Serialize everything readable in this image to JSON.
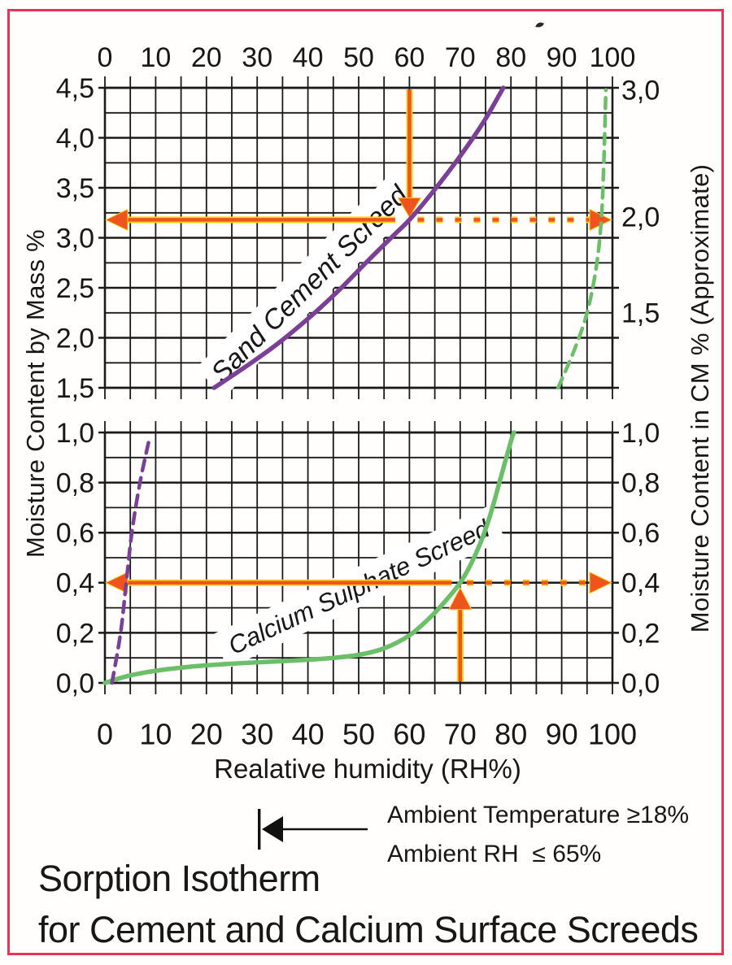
{
  "frame": {
    "border_color": "#ee3156"
  },
  "title": {
    "line1": "Sorption Isotherm",
    "line2": "for Cement and Calcium Surface Screeds"
  },
  "legend": {
    "line1": "Ambient Temperature ≥18%",
    "line2": "Ambient RH  ≤ 65%"
  },
  "axis_titles": {
    "x": "Realative humidity (RH%)",
    "left": "Moisture Content by Mass %",
    "right": "Moisture Content in CM % (Approximate)"
  },
  "curve_labels": {
    "sand": "Sand Cement Screed",
    "calcium": "Calcium Sulphate Screed"
  },
  "colors": {
    "purple": "#7b3f98",
    "green": "#6abf68",
    "orange": "#f0541e",
    "orange_glow": "#ffd21f",
    "grid": "#1a1a1a",
    "text": "#171717"
  },
  "chart_data": {
    "type": "line",
    "title": "Sorption Isotherm for Cement and Calcium Surface Screeds",
    "xlabel": "Realative humidity (RH%)",
    "x_axis": {
      "min": 0,
      "max": 100,
      "minor_step": 5,
      "major_step": 10,
      "tick_labels": [
        "0",
        "10",
        "20",
        "30",
        "40",
        "50",
        "60",
        "70",
        "80",
        "90",
        "100"
      ]
    },
    "panels": [
      {
        "id": "top",
        "left_axis": {
          "label": "Moisture Content by Mass %",
          "min": 1.5,
          "max": 4.5,
          "minor_step": 0.25,
          "major_step": 0.5,
          "tick_labels": [
            {
              "text": "4,5",
              "at": 4.5
            },
            {
              "text": "4,0",
              "at": 4.0
            },
            {
              "text": "3,5",
              "at": 3.5
            },
            {
              "text": "3,0",
              "at": 3.0
            },
            {
              "text": "2,5",
              "at": 2.5
            },
            {
              "text": "2,0",
              "at": 2.0
            },
            {
              "text": "1,5",
              "at": 1.5
            }
          ]
        },
        "right_axis": {
          "label": "Moisture Content in CM % (Approximate)",
          "tick_labels": [
            {
              "text": "3,0",
              "at": 4.48
            },
            {
              "text": "2,0",
              "at": 3.21
            },
            {
              "text": "1,5",
              "at": 2.25
            }
          ]
        },
        "series": [
          {
            "name": "Sand Cement Screed",
            "color": "purple",
            "style": "solid",
            "points": [
              [
                21.5,
                1.5
              ],
              [
                28,
                1.72
              ],
              [
                34,
                1.94
              ],
              [
                40,
                2.19
              ],
              [
                46,
                2.47
              ],
              [
                52,
                2.78
              ],
              [
                57,
                3.03
              ],
              [
                60,
                3.18
              ],
              [
                64,
                3.42
              ],
              [
                68,
                3.68
              ],
              [
                72,
                3.96
              ],
              [
                75,
                4.19
              ],
              [
                78.5,
                4.5
              ]
            ]
          },
          {
            "name": "Calcium Sulphate Screed (continuation, dashed)",
            "color": "green",
            "style": "dashed",
            "points": [
              [
                89.3,
                1.5
              ],
              [
                92.5,
                1.88
              ],
              [
                95,
                2.25
              ],
              [
                96.8,
                2.7
              ],
              [
                97.8,
                3.18
              ],
              [
                98.3,
                3.75
              ],
              [
                98.7,
                4.48
              ]
            ]
          }
        ],
        "annotation": {
          "vertical_arrow_x": 60,
          "vertical_arrow_direction": "down",
          "horizontal_arrow_y": 3.18,
          "solid_until_x": 57.2,
          "dotted_from_x": 61.6
        }
      },
      {
        "id": "bottom",
        "left_axis": {
          "label": "Moisture Content by Mass %",
          "min": 0.0,
          "max": 1.0,
          "minor_step": 0.1,
          "major_step": 0.2,
          "tick_labels": [
            {
              "text": "1,0",
              "at": 1.0
            },
            {
              "text": "0,8",
              "at": 0.8
            },
            {
              "text": "0,6",
              "at": 0.6
            },
            {
              "text": "0,4",
              "at": 0.4
            },
            {
              "text": "0,2",
              "at": 0.2
            },
            {
              "text": "0,0",
              "at": 0.0
            }
          ]
        },
        "right_axis": {
          "label": "Moisture Content in CM % (Approximate)",
          "tick_labels": [
            {
              "text": "1,0",
              "at": 1.0
            },
            {
              "text": "0,8",
              "at": 0.8
            },
            {
              "text": "0,6",
              "at": 0.6
            },
            {
              "text": "0,4",
              "at": 0.4
            },
            {
              "text": "0,2",
              "at": 0.2
            },
            {
              "text": "0,0",
              "at": 0.0
            }
          ]
        },
        "series": [
          {
            "name": "Calcium Sulphate Screed",
            "color": "green",
            "style": "solid",
            "points": [
              [
                0,
                0
              ],
              [
                4,
                0.025
              ],
              [
                8,
                0.042
              ],
              [
                12,
                0.054
              ],
              [
                16,
                0.063
              ],
              [
                20,
                0.07
              ],
              [
                26,
                0.078
              ],
              [
                32,
                0.084
              ],
              [
                38,
                0.09
              ],
              [
                44,
                0.098
              ],
              [
                50,
                0.112
              ],
              [
                55,
                0.138
              ],
              [
                60,
                0.19
              ],
              [
                64,
                0.26
              ],
              [
                67,
                0.325
              ],
              [
                70,
                0.4
              ],
              [
                72,
                0.47
              ],
              [
                74,
                0.56
              ],
              [
                76,
                0.675
              ],
              [
                78,
                0.82
              ],
              [
                80,
                0.965
              ],
              [
                80.6,
                1.0
              ]
            ]
          },
          {
            "name": "Sand Cement Screed (continuation, dashed)",
            "color": "purple",
            "style": "dashed",
            "points": [
              [
                1.4,
                0
              ],
              [
                3.1,
                0.2
              ],
              [
                4.2,
                0.4
              ],
              [
                5.3,
                0.6
              ],
              [
                6.9,
                0.8
              ],
              [
                8.7,
                0.97
              ]
            ]
          }
        ],
        "annotation": {
          "vertical_arrow_x": 70,
          "vertical_arrow_direction": "up",
          "horizontal_arrow_y": 0.4,
          "solid_until_x": 68.3,
          "dotted_from_x": 71.3
        }
      }
    ]
  }
}
